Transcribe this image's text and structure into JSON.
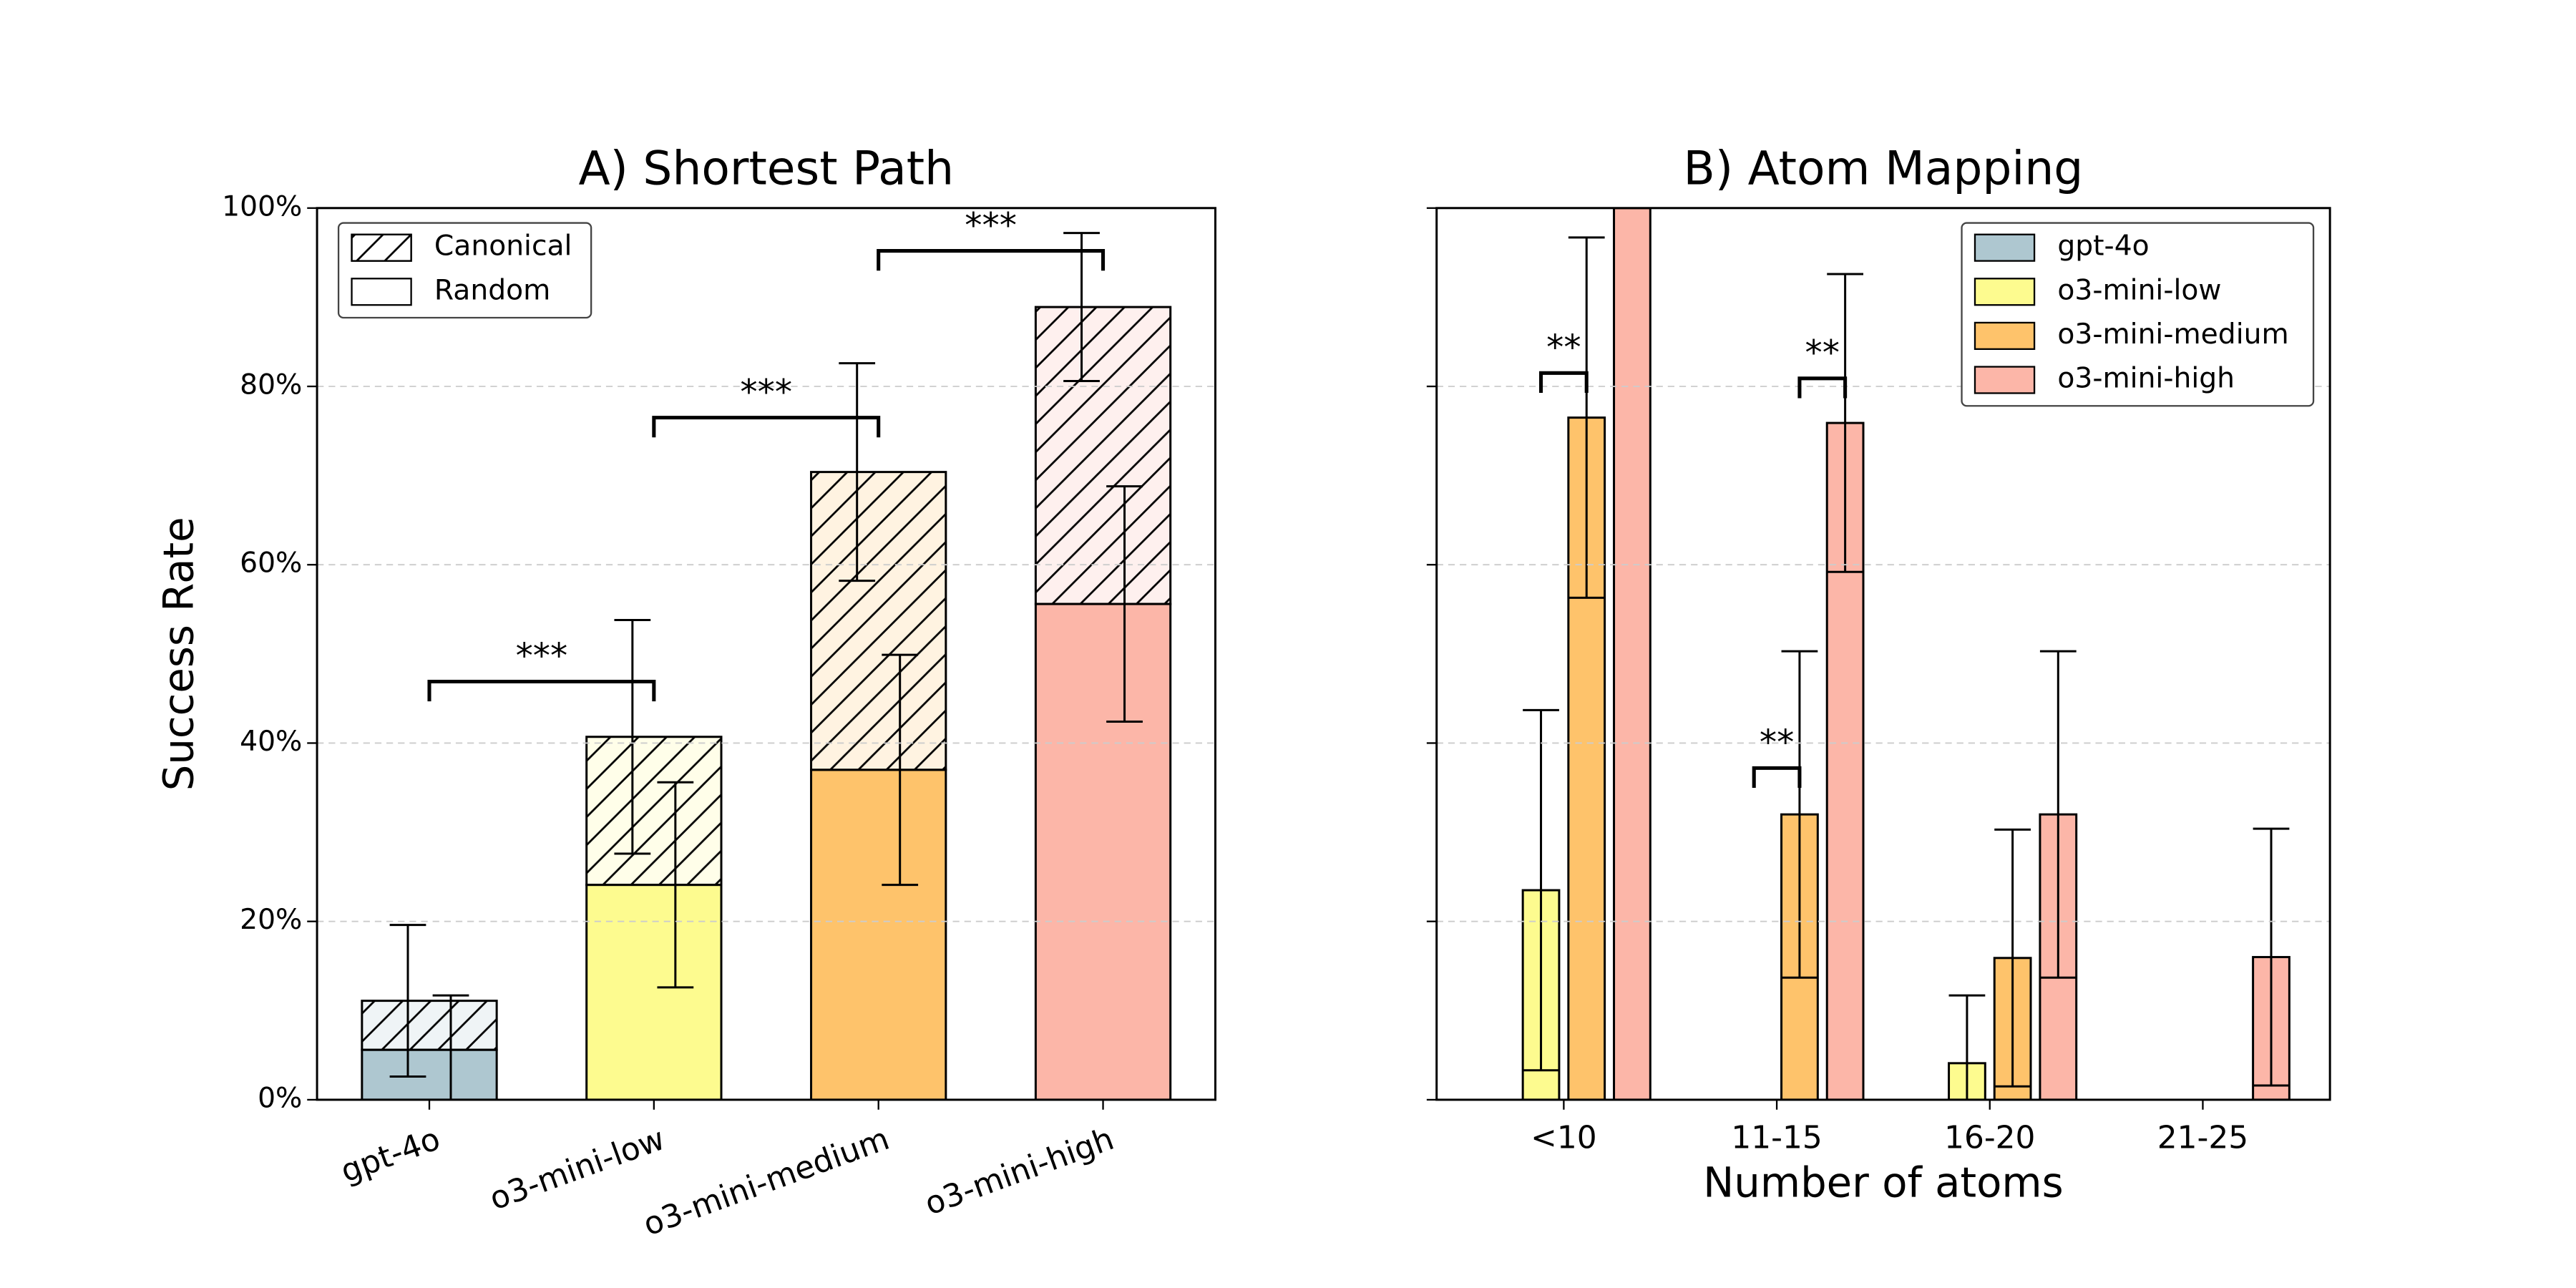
{
  "chart_data": [
    {
      "type": "stacked_bar",
      "title": "A) Shortest Path",
      "ylabel": "Success Rate",
      "categories": [
        "gpt-4o",
        "o3-mini-low",
        "o3-mini-medium",
        "o3-mini-high"
      ],
      "colors": [
        "#aec7d0",
        "#fdfb8f",
        "#fec36b",
        "#fcb6a8"
      ],
      "series": [
        {
          "name": "Canonical",
          "hatch": "/",
          "values": [
            5.5,
            16.6,
            33.4,
            33.3
          ],
          "errors": [
            8.5,
            13.1,
            12.2,
            8.3
          ]
        },
        {
          "name": "Random",
          "values": [
            5.6,
            24.1,
            37.0,
            55.6
          ],
          "errors": [
            6.1,
            11.5,
            12.9,
            13.2
          ]
        }
      ],
      "ylim": [
        0,
        100
      ],
      "yticks": [
        {
          "value": 0,
          "label": "0%"
        },
        {
          "value": 20,
          "label": "20%"
        },
        {
          "value": 40,
          "label": "40%"
        },
        {
          "value": 60,
          "label": "60%"
        },
        {
          "value": 80,
          "label": "80%"
        },
        {
          "value": 100,
          "label": "100%"
        }
      ],
      "grid": true,
      "legend": "upper left",
      "annotations": [
        {
          "text": "***",
          "between": [
            "gpt-4o",
            "o3-mini-low"
          ],
          "y": 46.9
        },
        {
          "text": "***",
          "between": [
            "o3-mini-low",
            "o3-mini-medium"
          ],
          "y": 76.5
        },
        {
          "text": "***",
          "between": [
            "o3-mini-medium",
            "o3-mini-high"
          ],
          "y": 95.2
        }
      ]
    },
    {
      "type": "grouped_bar",
      "title": "B) Atom Mapping",
      "xlabel": "Number of atoms",
      "categories": [
        "<10",
        "11-15",
        "16-20",
        "21-25"
      ],
      "series": [
        {
          "name": "gpt-4o",
          "color": "#aec7d0",
          "values": [
            0,
            0,
            0,
            0
          ],
          "errors": [
            null,
            null,
            null,
            null
          ]
        },
        {
          "name": "o3-mini-low",
          "color": "#fdfb8f",
          "values": [
            23.5,
            0,
            4.1,
            0
          ],
          "errors": [
            20.2,
            null,
            7.6,
            null
          ]
        },
        {
          "name": "o3-mini-medium",
          "color": "#fec36b",
          "values": [
            76.5,
            32.0,
            15.9,
            0
          ],
          "errors": [
            20.2,
            18.3,
            14.4,
            null
          ]
        },
        {
          "name": "o3-mini-high",
          "color": "#fcb6a8",
          "values": [
            100,
            75.9,
            32.0,
            16.0
          ],
          "errors": [
            null,
            16.7,
            18.3,
            14.4
          ]
        }
      ],
      "ylim": [
        0,
        100
      ],
      "yticks": [
        0,
        20,
        40,
        60,
        80,
        100
      ],
      "sharey": true,
      "grid": true,
      "legend": "upper right",
      "annotations": [
        {
          "text": "**",
          "category": "<10",
          "between": [
            "o3-mini-low",
            "o3-mini-medium"
          ],
          "y": 81.5
        },
        {
          "text": "**",
          "category": "11-15",
          "between": [
            "o3-mini-medium",
            "o3-mini-high"
          ],
          "y": 80.9
        },
        {
          "text": "**",
          "category": "11-15",
          "between": [
            "o3-mini-low",
            "o3-mini-medium"
          ],
          "y": 37.2
        }
      ]
    }
  ]
}
